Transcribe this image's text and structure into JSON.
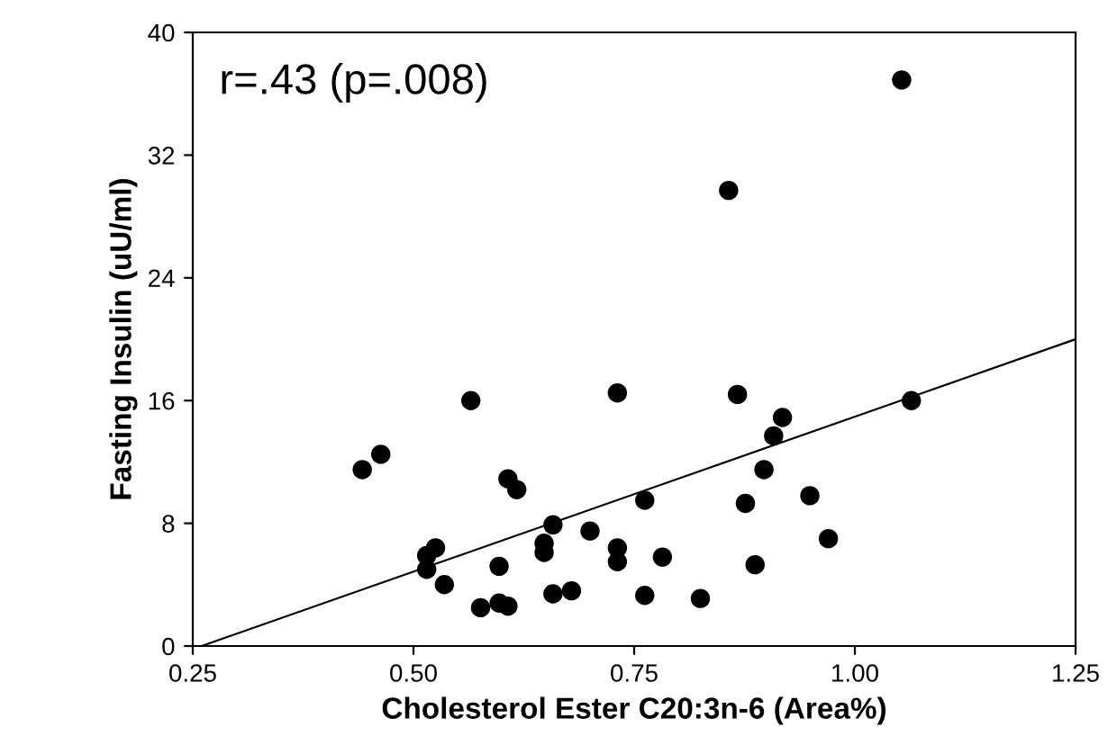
{
  "chart_data": {
    "type": "scatter",
    "xlabel": "Cholesterol Ester C20:3n-6 (Area%)",
    "ylabel": "Fasting Insulin (uU/ml)",
    "annotations": [
      "r=.43 (p=.008)"
    ],
    "xlim": [
      0.25,
      1.25
    ],
    "ylim": [
      0,
      40
    ],
    "xticks": [
      {
        "value": 0.25,
        "label": "0.25"
      },
      {
        "value": 0.5,
        "label": "0.50"
      },
      {
        "value": 0.75,
        "label": "0.75"
      },
      {
        "value": 1.0,
        "label": "1.00"
      },
      {
        "value": 1.25,
        "label": "1.25"
      }
    ],
    "yticks": [
      0,
      8,
      16,
      24,
      32,
      40
    ],
    "grid": false,
    "legend": false,
    "series": [
      {
        "marker": "circle",
        "color": "#000000",
        "x": [
          0.442,
          0.463,
          0.565,
          0.731,
          0.607,
          0.617,
          0.658,
          0.7,
          0.648,
          0.648,
          0.731,
          0.731,
          0.762,
          0.525,
          0.515,
          0.515,
          0.535,
          0.597,
          0.576,
          0.597,
          0.607,
          0.658,
          0.679,
          0.762,
          0.867,
          0.918,
          0.908,
          0.897,
          0.876,
          0.949,
          0.97,
          0.782,
          0.887,
          0.825,
          1.064,
          1.053,
          0.857
        ],
        "values": [
          11.5,
          12.5,
          16.0,
          16.5,
          10.9,
          10.2,
          7.9,
          7.5,
          6.7,
          6.1,
          6.4,
          5.5,
          9.5,
          6.4,
          5.9,
          5.0,
          4.0,
          5.2,
          2.5,
          2.8,
          2.6,
          3.4,
          3.6,
          3.3,
          16.4,
          14.9,
          13.7,
          11.5,
          9.3,
          9.8,
          7.0,
          5.8,
          5.3,
          3.1,
          16.0,
          36.9,
          29.7
        ]
      },
      {
        "type": "line",
        "color": "#000000",
        "x": [
          0.26,
          1.25
        ],
        "values": [
          0,
          20.0
        ]
      }
    ]
  }
}
